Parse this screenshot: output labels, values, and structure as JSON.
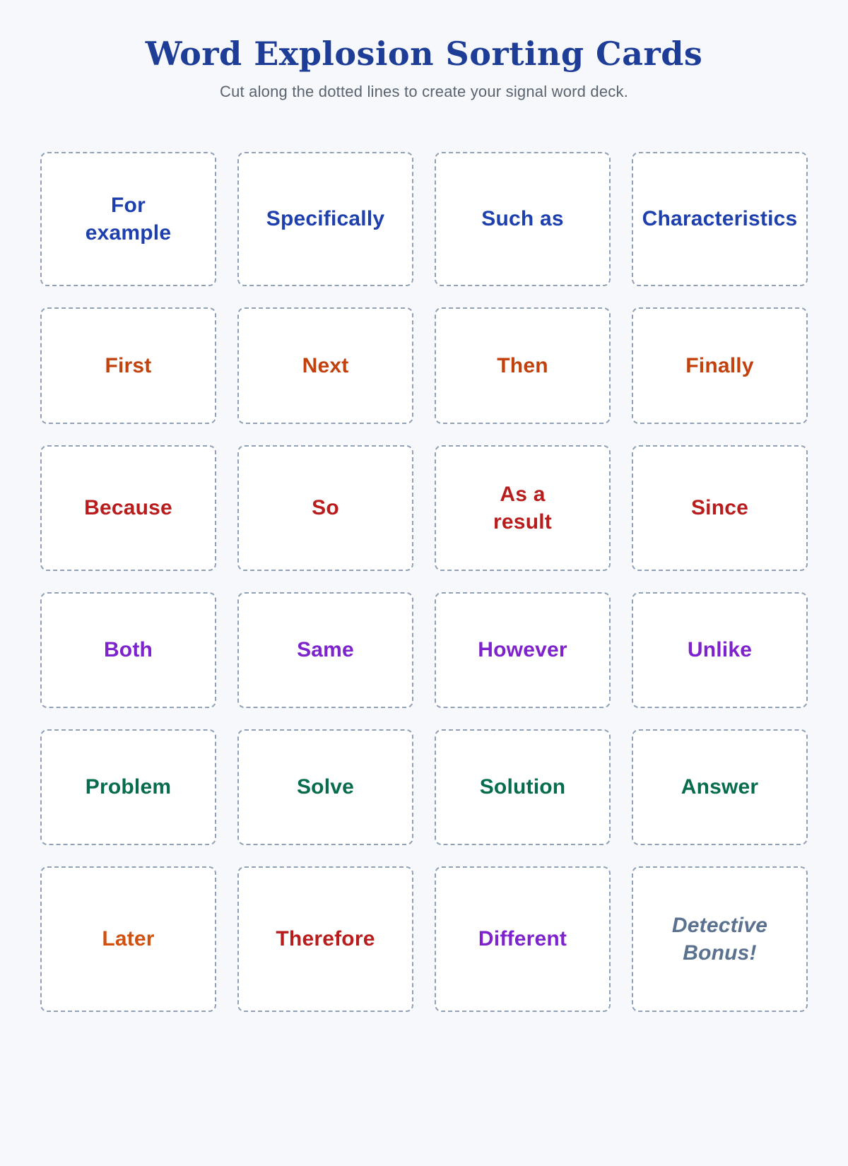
{
  "header": {
    "title": "Word Explosion Sorting Cards",
    "subtitle": "Cut along the dotted lines to create your signal word deck."
  },
  "colors": {
    "page_background": "#f7f8fb",
    "card_background": "#ffffff",
    "card_border": "#90a0b7",
    "title": "#1e3d96",
    "subtitle": "#5a6370",
    "example_words": "#1e40af",
    "sequence_words": "#c2410c",
    "cause_effect_words": "#b91c1c",
    "compare_contrast_words": "#7e22ce",
    "problem_solution_words": "#076c4e",
    "later_word": "#d2500e",
    "detective_bonus": "#5a7190"
  },
  "cards": [
    {
      "label": "For\nexample",
      "color": "#1e40af"
    },
    {
      "label": "Specifically",
      "color": "#1e40af"
    },
    {
      "label": "Such as",
      "color": "#1e40af"
    },
    {
      "label": "Characteristics",
      "color": "#1e40af"
    },
    {
      "label": "First",
      "color": "#c2410c"
    },
    {
      "label": "Next",
      "color": "#c2410c"
    },
    {
      "label": "Then",
      "color": "#c2410c"
    },
    {
      "label": "Finally",
      "color": "#c2410c"
    },
    {
      "label": "Because",
      "color": "#b91c1c"
    },
    {
      "label": "So",
      "color": "#b91c1c"
    },
    {
      "label": "As a\nresult",
      "color": "#b91c1c"
    },
    {
      "label": "Since",
      "color": "#b91c1c"
    },
    {
      "label": "Both",
      "color": "#7e22ce"
    },
    {
      "label": "Same",
      "color": "#7e22ce"
    },
    {
      "label": "However",
      "color": "#7e22ce"
    },
    {
      "label": "Unlike",
      "color": "#7e22ce"
    },
    {
      "label": "Problem",
      "color": "#076c4e"
    },
    {
      "label": "Solve",
      "color": "#076c4e"
    },
    {
      "label": "Solution",
      "color": "#076c4e"
    },
    {
      "label": "Answer",
      "color": "#076c4e"
    },
    {
      "label": "Later",
      "color": "#d2500e"
    },
    {
      "label": "Therefore",
      "color": "#b91c1c"
    },
    {
      "label": "Different",
      "color": "#7e22ce"
    },
    {
      "label": "Detective\nBonus!",
      "color": "#5a7190"
    }
  ]
}
